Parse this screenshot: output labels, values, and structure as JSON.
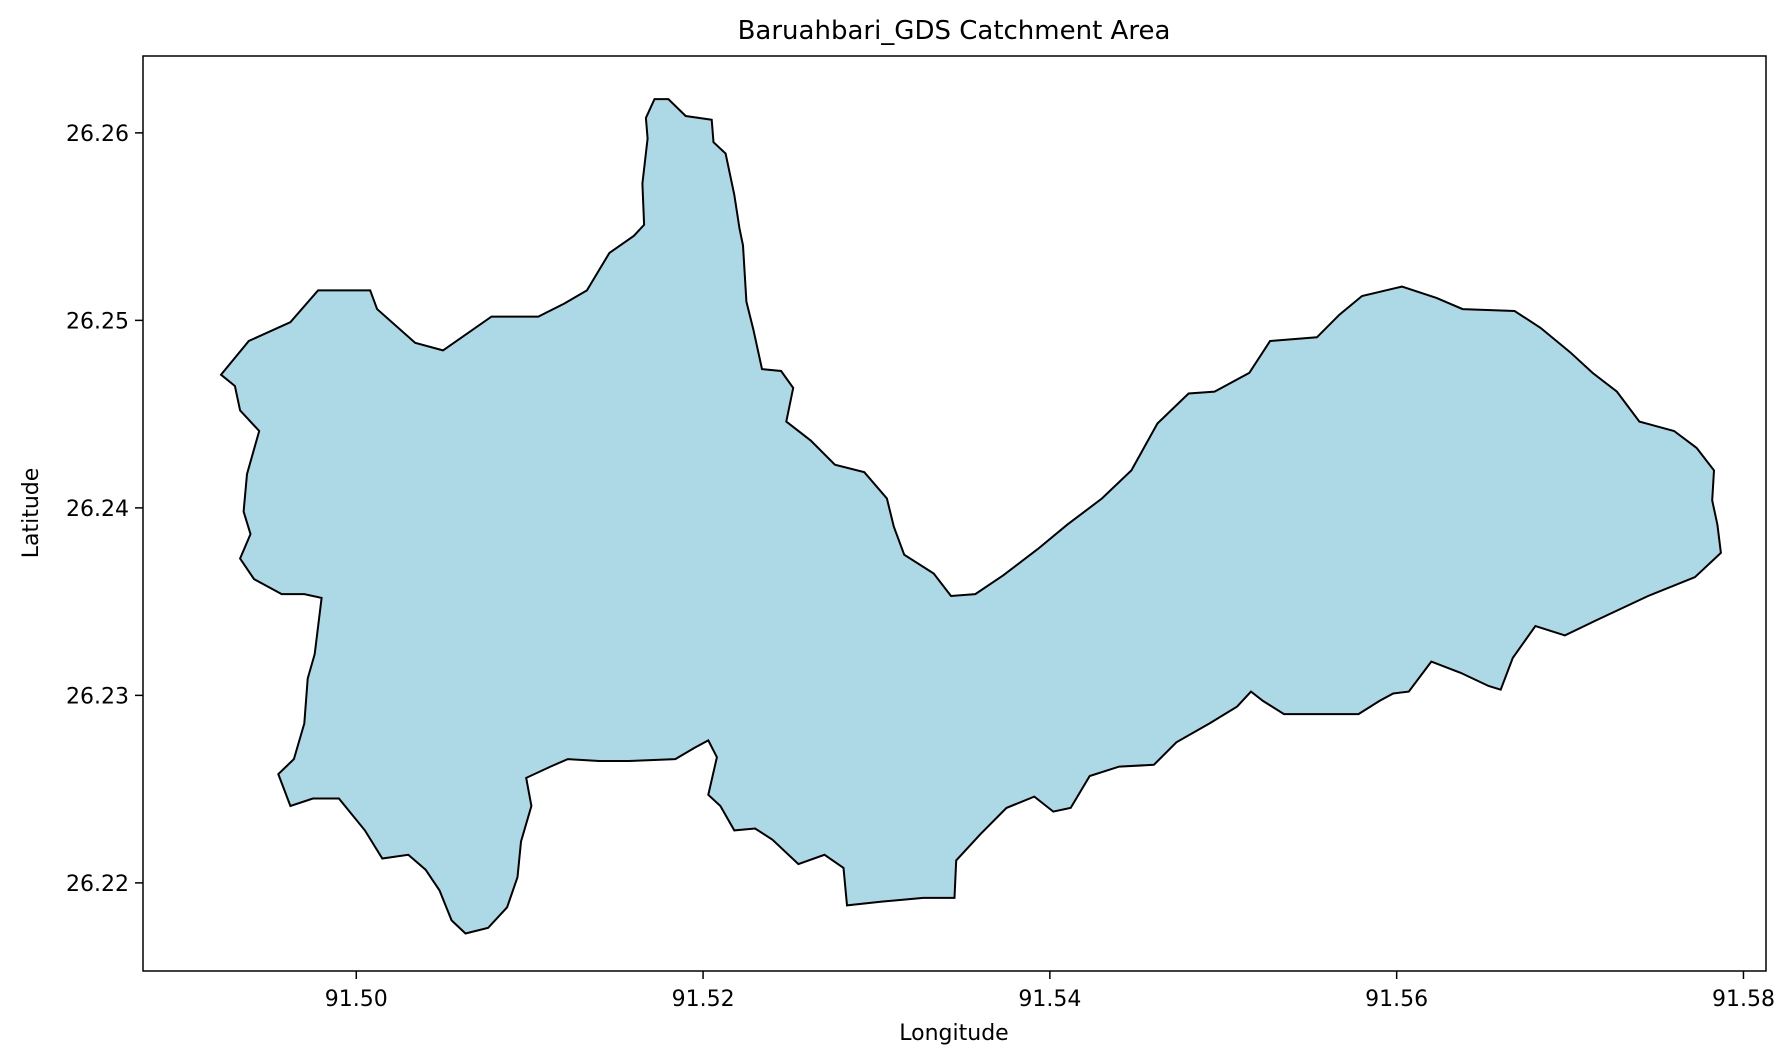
{
  "chart_data": {
    "type": "map",
    "title": "Baruahbari_GDS Catchment Area",
    "xlabel": "Longitude",
    "ylabel": "Latitude",
    "xlim": [
      91.4877,
      91.5813
    ],
    "ylim": [
      26.2153,
      26.2641
    ],
    "x_ticks": [
      91.5,
      91.52,
      91.54,
      91.56,
      91.58
    ],
    "x_tick_labels": [
      "91.50",
      "91.52",
      "91.54",
      "91.56",
      "91.58"
    ],
    "y_ticks": [
      26.22,
      26.23,
      26.24,
      26.25,
      26.26
    ],
    "y_tick_labels": [
      "26.22",
      "26.23",
      "26.24",
      "26.25",
      "26.26"
    ],
    "grid": false,
    "series": [
      {
        "geometry": "polygon",
        "fill": "#add8e6",
        "stroke": "#000000",
        "points": [
          [
            91.4922,
            26.2471
          ],
          [
            91.4938,
            26.2489
          ],
          [
            91.4962,
            26.2499
          ],
          [
            91.4978,
            26.2516
          ],
          [
            91.5008,
            26.2516
          ],
          [
            91.5012,
            26.2506
          ],
          [
            91.5034,
            26.2488
          ],
          [
            91.505,
            26.2484
          ],
          [
            91.5078,
            26.2502
          ],
          [
            91.5105,
            26.2502
          ],
          [
            91.512,
            26.2509
          ],
          [
            91.5133,
            26.2516
          ],
          [
            91.5146,
            26.2536
          ],
          [
            91.516,
            26.2545
          ],
          [
            91.5166,
            26.2551
          ],
          [
            91.5165,
            26.2573
          ],
          [
            91.5168,
            26.2597
          ],
          [
            91.5167,
            26.2608
          ],
          [
            91.5172,
            26.2618
          ],
          [
            91.518,
            26.2618
          ],
          [
            91.519,
            26.2609
          ],
          [
            91.5205,
            26.2607
          ],
          [
            91.5206,
            26.2595
          ],
          [
            91.5213,
            26.2589
          ],
          [
            91.5218,
            26.2567
          ],
          [
            91.5221,
            26.2549
          ],
          [
            91.5223,
            26.254
          ],
          [
            91.5225,
            26.251
          ],
          [
            91.5229,
            26.2495
          ],
          [
            91.5234,
            26.2474
          ],
          [
            91.5245,
            26.2473
          ],
          [
            91.5252,
            26.2464
          ],
          [
            91.5248,
            26.2446
          ],
          [
            91.5262,
            26.2436
          ],
          [
            91.5276,
            26.2423
          ],
          [
            91.5293,
            26.2419
          ],
          [
            91.5306,
            26.2405
          ],
          [
            91.531,
            26.239
          ],
          [
            91.5316,
            26.2375
          ],
          [
            91.5333,
            26.2365
          ],
          [
            91.5343,
            26.2353
          ],
          [
            91.5357,
            26.2354
          ],
          [
            91.5373,
            26.2364
          ],
          [
            91.5393,
            26.2378
          ],
          [
            91.541,
            26.2391
          ],
          [
            91.543,
            26.2405
          ],
          [
            91.5447,
            26.242
          ],
          [
            91.5462,
            26.2445
          ],
          [
            91.548,
            26.2461
          ],
          [
            91.5495,
            26.2462
          ],
          [
            91.5515,
            26.2472
          ],
          [
            91.5527,
            26.2489
          ],
          [
            91.5554,
            26.2491
          ],
          [
            91.5567,
            26.2503
          ],
          [
            91.558,
            26.2513
          ],
          [
            91.5603,
            26.2518
          ],
          [
            91.5623,
            26.2512
          ],
          [
            91.5638,
            26.2506
          ],
          [
            91.5668,
            26.2505
          ],
          [
            91.5683,
            26.2496
          ],
          [
            91.57,
            26.2483
          ],
          [
            91.5713,
            26.2472
          ],
          [
            91.5727,
            26.2462
          ],
          [
            91.574,
            26.2446
          ],
          [
            91.576,
            26.2441
          ],
          [
            91.5773,
            26.2432
          ],
          [
            91.5783,
            26.242
          ],
          [
            91.5782,
            26.2404
          ],
          [
            91.5785,
            26.2391
          ],
          [
            91.5787,
            26.2376
          ],
          [
            91.5772,
            26.2363
          ],
          [
            91.5745,
            26.2353
          ],
          [
            91.5715,
            26.234
          ],
          [
            91.5697,
            26.2332
          ],
          [
            91.568,
            26.2337
          ],
          [
            91.5667,
            26.232
          ],
          [
            91.566,
            26.2303
          ],
          [
            91.5653,
            26.2305
          ],
          [
            91.5637,
            26.2312
          ],
          [
            91.562,
            26.2318
          ],
          [
            91.5607,
            26.2302
          ],
          [
            91.5598,
            26.2301
          ],
          [
            91.559,
            26.2297
          ],
          [
            91.5578,
            26.229
          ],
          [
            91.5553,
            26.229
          ],
          [
            91.5535,
            26.229
          ],
          [
            91.5523,
            26.2297
          ],
          [
            91.5516,
            26.2302
          ],
          [
            91.5508,
            26.2294
          ],
          [
            91.5492,
            26.2285
          ],
          [
            91.5473,
            26.2275
          ],
          [
            91.546,
            26.2263
          ],
          [
            91.544,
            26.2262
          ],
          [
            91.5423,
            26.2257
          ],
          [
            91.5412,
            26.224
          ],
          [
            91.5402,
            26.2238
          ],
          [
            91.5391,
            26.2246
          ],
          [
            91.5375,
            26.224
          ],
          [
            91.536,
            26.2226
          ],
          [
            91.5346,
            26.2212
          ],
          [
            91.5345,
            26.2192
          ],
          [
            91.5327,
            26.2192
          ],
          [
            91.5303,
            26.219
          ],
          [
            91.5283,
            26.2188
          ],
          [
            91.5281,
            26.2208
          ],
          [
            91.527,
            26.2215
          ],
          [
            91.5255,
            26.221
          ],
          [
            91.524,
            26.2223
          ],
          [
            91.523,
            26.2229
          ],
          [
            91.5218,
            26.2228
          ],
          [
            91.521,
            26.2241
          ],
          [
            91.5203,
            26.2247
          ],
          [
            91.5208,
            26.2267
          ],
          [
            91.5203,
            26.2276
          ],
          [
            91.5195,
            26.2272
          ],
          [
            91.5184,
            26.2266
          ],
          [
            91.5157,
            26.2265
          ],
          [
            91.514,
            26.2265
          ],
          [
            91.5122,
            26.2266
          ],
          [
            91.5112,
            26.2262
          ],
          [
            91.5098,
            26.2256
          ],
          [
            91.5101,
            26.2241
          ],
          [
            91.5095,
            26.2222
          ],
          [
            91.5093,
            26.2203
          ],
          [
            91.5087,
            26.2187
          ],
          [
            91.5076,
            26.2176
          ],
          [
            91.5063,
            26.2173
          ],
          [
            91.5055,
            26.218
          ],
          [
            91.5048,
            26.2196
          ],
          [
            91.504,
            26.2207
          ],
          [
            91.503,
            26.2215
          ],
          [
            91.5015,
            26.2213
          ],
          [
            91.5005,
            26.2228
          ],
          [
            91.499,
            26.2245
          ],
          [
            91.4975,
            26.2245
          ],
          [
            91.4962,
            26.2241
          ],
          [
            91.4955,
            26.2258
          ],
          [
            91.4964,
            26.2266
          ],
          [
            91.497,
            26.2285
          ],
          [
            91.4972,
            26.2309
          ],
          [
            91.4976,
            26.2322
          ],
          [
            91.498,
            26.2352
          ],
          [
            91.497,
            26.2354
          ],
          [
            91.4957,
            26.2354
          ],
          [
            91.4941,
            26.2362
          ],
          [
            91.4933,
            26.2373
          ],
          [
            91.4939,
            26.2386
          ],
          [
            91.4935,
            26.2398
          ],
          [
            91.4937,
            26.2418
          ],
          [
            91.4944,
            26.2441
          ],
          [
            91.4933,
            26.2452
          ],
          [
            91.493,
            26.2465
          ]
        ]
      }
    ]
  }
}
